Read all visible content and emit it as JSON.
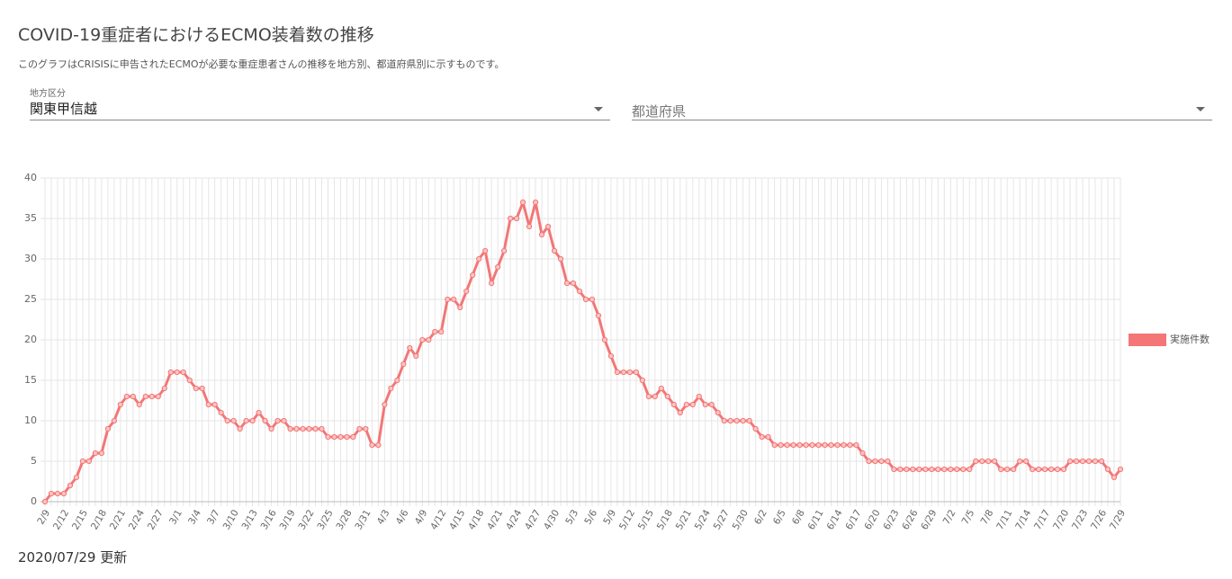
{
  "page": {
    "title": "COVID-19重症者におけるECMO装着数の推移",
    "description": "このグラフはCRISISに申告されたECMOが必要な重症患者さんの推移を地方別、都道府県別に示すものです。",
    "filters": [
      {
        "label": "地方区分",
        "value": "関東甲信越"
      },
      {
        "placeholder": "都道府県"
      }
    ],
    "updated": "2020/07/29 更新"
  },
  "chart_data": {
    "type": "line",
    "categories": [
      "2/9",
      null,
      null,
      "2/12",
      null,
      null,
      "2/15",
      null,
      null,
      "2/18",
      null,
      null,
      "2/21",
      null,
      null,
      "2/24",
      null,
      null,
      "2/27",
      null,
      null,
      "3/1",
      null,
      null,
      "3/4",
      null,
      null,
      "3/7",
      null,
      null,
      "3/10",
      null,
      null,
      "3/13",
      null,
      null,
      "3/16",
      null,
      null,
      "3/19",
      null,
      null,
      "3/22",
      null,
      null,
      "3/25",
      null,
      null,
      "3/28",
      null,
      null,
      "3/31",
      null,
      null,
      "4/3",
      null,
      null,
      "4/6",
      null,
      null,
      "4/9",
      null,
      null,
      "4/12",
      null,
      null,
      "4/15",
      null,
      null,
      "4/18",
      null,
      null,
      "4/21",
      null,
      null,
      "4/24",
      null,
      null,
      "4/27",
      null,
      null,
      "4/30",
      null,
      null,
      "5/3",
      null,
      null,
      "5/6",
      null,
      null,
      "5/9",
      null,
      null,
      "5/12",
      null,
      null,
      "5/15",
      null,
      null,
      "5/18",
      null,
      null,
      "5/21",
      null,
      null,
      "5/24",
      null,
      null,
      "5/27",
      null,
      null,
      "5/30",
      null,
      null,
      "6/2",
      null,
      null,
      "6/5",
      null,
      null,
      "6/8",
      null,
      null,
      "6/11",
      null,
      null,
      "6/14",
      null,
      null,
      "6/17",
      null,
      null,
      "6/20",
      null,
      null,
      "6/23",
      null,
      null,
      "6/26",
      null,
      null,
      "6/29",
      null,
      null,
      "7/2",
      null,
      null,
      "7/5",
      null,
      null,
      "7/8",
      null,
      null,
      "7/11",
      null,
      null,
      "7/14",
      null,
      null,
      "7/17",
      null,
      null,
      "7/20",
      null,
      null,
      "7/23",
      null,
      null,
      "7/26",
      null,
      null,
      "7/29"
    ],
    "series": [
      {
        "name": "実施件数",
        "color": "#f47676",
        "values": [
          0,
          1,
          1,
          1,
          2,
          3,
          5,
          5,
          6,
          6,
          9,
          10,
          12,
          13,
          13,
          12,
          13,
          13,
          13,
          14,
          16,
          16,
          16,
          15,
          14,
          14,
          12,
          12,
          11,
          10,
          10,
          9,
          10,
          10,
          11,
          10,
          9,
          10,
          10,
          9,
          9,
          9,
          9,
          9,
          9,
          8,
          8,
          8,
          8,
          8,
          9,
          9,
          7,
          7,
          12,
          14,
          15,
          17,
          19,
          18,
          20,
          20,
          21,
          21,
          25,
          25,
          24,
          26,
          28,
          30,
          31,
          27,
          29,
          31,
          35,
          35,
          37,
          34,
          37,
          33,
          34,
          31,
          30,
          27,
          27,
          26,
          25,
          25,
          23,
          20,
          18,
          16,
          16,
          16,
          16,
          15,
          13,
          13,
          14,
          13,
          12,
          11,
          12,
          12,
          13,
          12,
          12,
          11,
          10,
          10,
          10,
          10,
          10,
          9,
          8,
          8,
          7,
          7,
          7,
          7,
          7,
          7,
          7,
          7,
          7,
          7,
          7,
          7,
          7,
          7,
          6,
          5,
          5,
          5,
          5,
          4,
          4,
          4,
          4,
          4,
          4,
          4,
          4,
          4,
          4,
          4,
          4,
          4,
          5,
          5,
          5,
          5,
          4,
          4,
          4,
          5,
          5,
          4,
          4,
          4,
          4,
          4,
          4,
          5,
          5,
          5,
          5,
          5,
          5,
          4,
          3,
          4
        ]
      }
    ],
    "ylim": [
      0,
      40
    ],
    "yticks": [
      0,
      5,
      10,
      15,
      20,
      25,
      30,
      35,
      40
    ],
    "grid": true,
    "legend": "right"
  }
}
